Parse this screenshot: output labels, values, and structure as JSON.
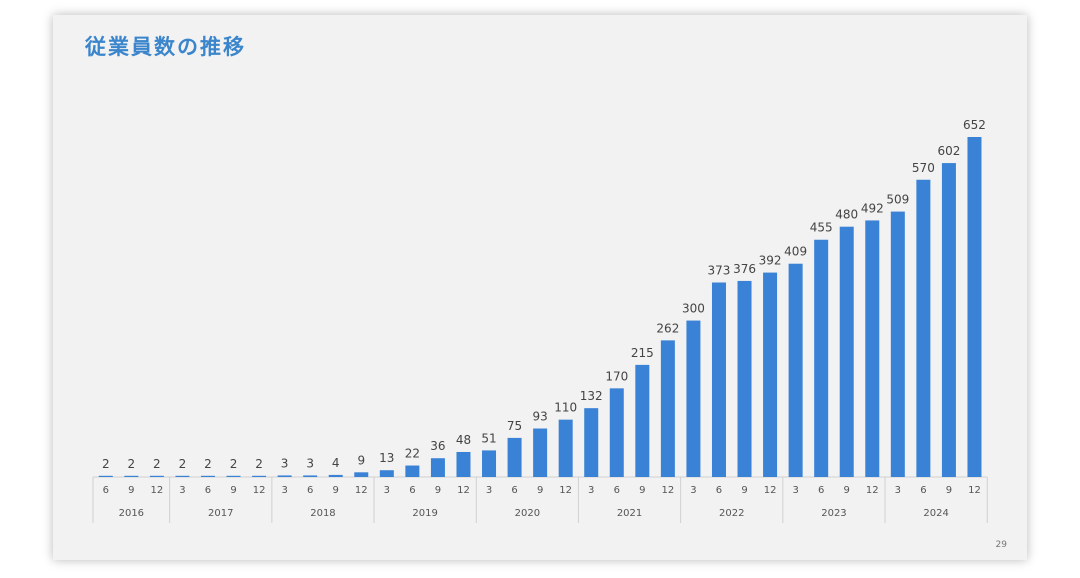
{
  "slide": {
    "title": "従業員数の推移",
    "page_number": "29"
  },
  "colors": {
    "bar": "#3a82d6",
    "title": "#3a85cc",
    "background": "#f2f2f2"
  },
  "chart_data": {
    "type": "bar",
    "title": "従業員数の推移",
    "xlabel": "",
    "ylabel": "",
    "ylim": [
      0,
      700
    ],
    "grid": false,
    "legend": "none",
    "categories": [
      "6",
      "9",
      "12",
      "3",
      "6",
      "9",
      "12",
      "3",
      "6",
      "9",
      "12",
      "3",
      "6",
      "9",
      "12",
      "3",
      "6",
      "9",
      "12",
      "3",
      "6",
      "9",
      "12",
      "3",
      "6",
      "9",
      "12",
      "3",
      "6",
      "9",
      "12",
      "3",
      "6",
      "9",
      "12"
    ],
    "values": [
      2,
      2,
      2,
      2,
      2,
      2,
      2,
      3,
      3,
      4,
      9,
      13,
      22,
      36,
      48,
      51,
      75,
      93,
      110,
      132,
      170,
      215,
      262,
      300,
      373,
      376,
      392,
      409,
      455,
      480,
      492,
      509,
      570,
      602,
      652
    ],
    "years": [
      {
        "label": "2016",
        "count": 3
      },
      {
        "label": "2017",
        "count": 4
      },
      {
        "label": "2018",
        "count": 4
      },
      {
        "label": "2019",
        "count": 4
      },
      {
        "label": "2020",
        "count": 4
      },
      {
        "label": "2021",
        "count": 4
      },
      {
        "label": "2022",
        "count": 4
      },
      {
        "label": "2023",
        "count": 4
      },
      {
        "label": "2024",
        "count": 4
      }
    ]
  }
}
